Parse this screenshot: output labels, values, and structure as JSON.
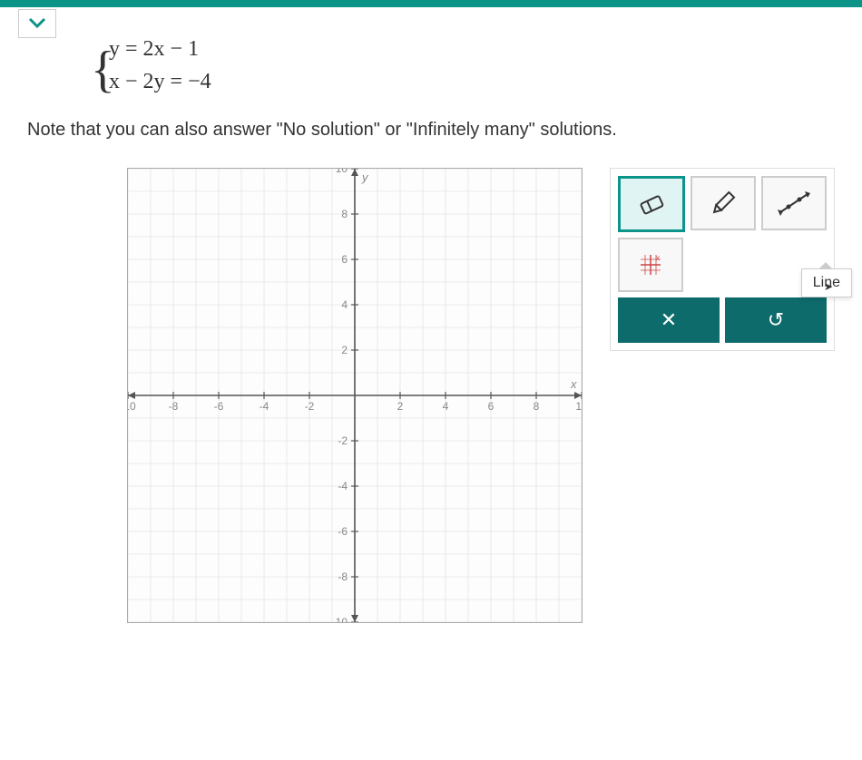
{
  "equations": {
    "eq1": "y = 2x − 1",
    "eq2": "x − 2y = −4"
  },
  "note": "Note that you can also answer \"No solution\" or \"Infinitely many\" solutions.",
  "graph": {
    "type": "cartesian-grid",
    "xmin": -10,
    "xmax": 10,
    "ymin": -10,
    "ymax": 10,
    "xtick_step": 2,
    "ytick_step": 2,
    "grid_color": "#dcdcdc",
    "axis_color": "#555555",
    "label_color": "#888888",
    "background_color": "#fdfdfd",
    "x_label": "x",
    "y_label": "y",
    "label_fontsize": 12
  },
  "toolbox": {
    "tools": [
      {
        "name": "eraser",
        "selected": true
      },
      {
        "name": "pencil",
        "selected": false
      },
      {
        "name": "line",
        "selected": false
      },
      {
        "name": "lattice",
        "selected": false
      }
    ],
    "actions": {
      "close_label": "✕",
      "undo_label": "↺"
    },
    "tooltip": "Line"
  },
  "colors": {
    "teal": "#0d9488",
    "dark_teal": "#0d6b6b",
    "selected_bg": "#e0f5f3"
  }
}
